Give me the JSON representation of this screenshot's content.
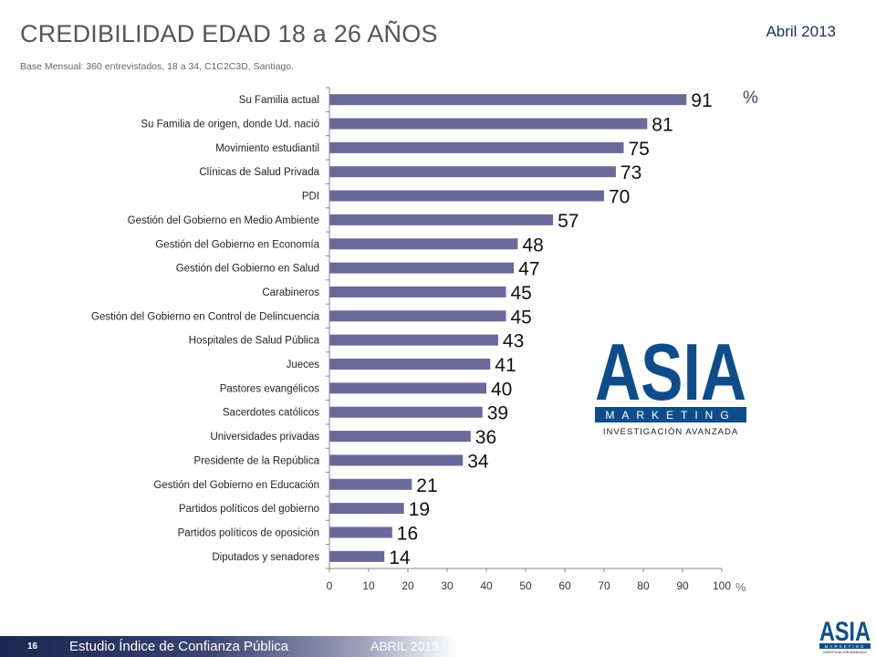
{
  "header": {
    "title": "CREDIBILIDAD EDAD 18 a 26 AÑOS",
    "date": "Abril 2013",
    "subtitle": "Base Mensual: 360 entrevistados, 18 a 34, C1C2C3D, Santiago."
  },
  "chart_data": {
    "type": "bar",
    "orientation": "horizontal",
    "unit_label": "%",
    "categories": [
      "Su Familia actual",
      "Su Familia de origen, donde Ud. nació",
      "Movimiento estudiantil",
      "Clínicas de Salud Privada",
      "PDI",
      "Gestión del Gobierno en Medio Ambiente",
      "Gestión del Gobierno en Economía",
      "Gestión del Gobierno en Salud",
      "Carabineros",
      "Gestión del Gobierno en Control de Delincuencia",
      "Hospitales de Salud Pública",
      "Jueces",
      "Pastores evangélicos",
      "Sacerdotes católicos",
      "Universidades privadas",
      "Presidente de la República",
      "Gestión del Gobierno en Educación",
      "Partidos políticos del gobierno",
      "Partidos políticos de oposición",
      "Diputados y senadores"
    ],
    "values": [
      91,
      81,
      75,
      73,
      70,
      57,
      48,
      47,
      45,
      45,
      43,
      41,
      40,
      39,
      36,
      34,
      21,
      19,
      16,
      14
    ],
    "xlim": [
      0,
      100
    ],
    "xticks": [
      0,
      10,
      20,
      30,
      40,
      50,
      60,
      70,
      80,
      90,
      100
    ],
    "bar_color": "#696a99",
    "grid": false
  },
  "logo": {
    "word": "ASIA",
    "band": "MARKETING",
    "tagline": "INVESTIGACIÓN AVANZADA",
    "color": "#0f4d8a"
  },
  "footer": {
    "page": "16",
    "text": "Estudio Índice de Confianza Pública",
    "date": "ABRIL 2013"
  }
}
